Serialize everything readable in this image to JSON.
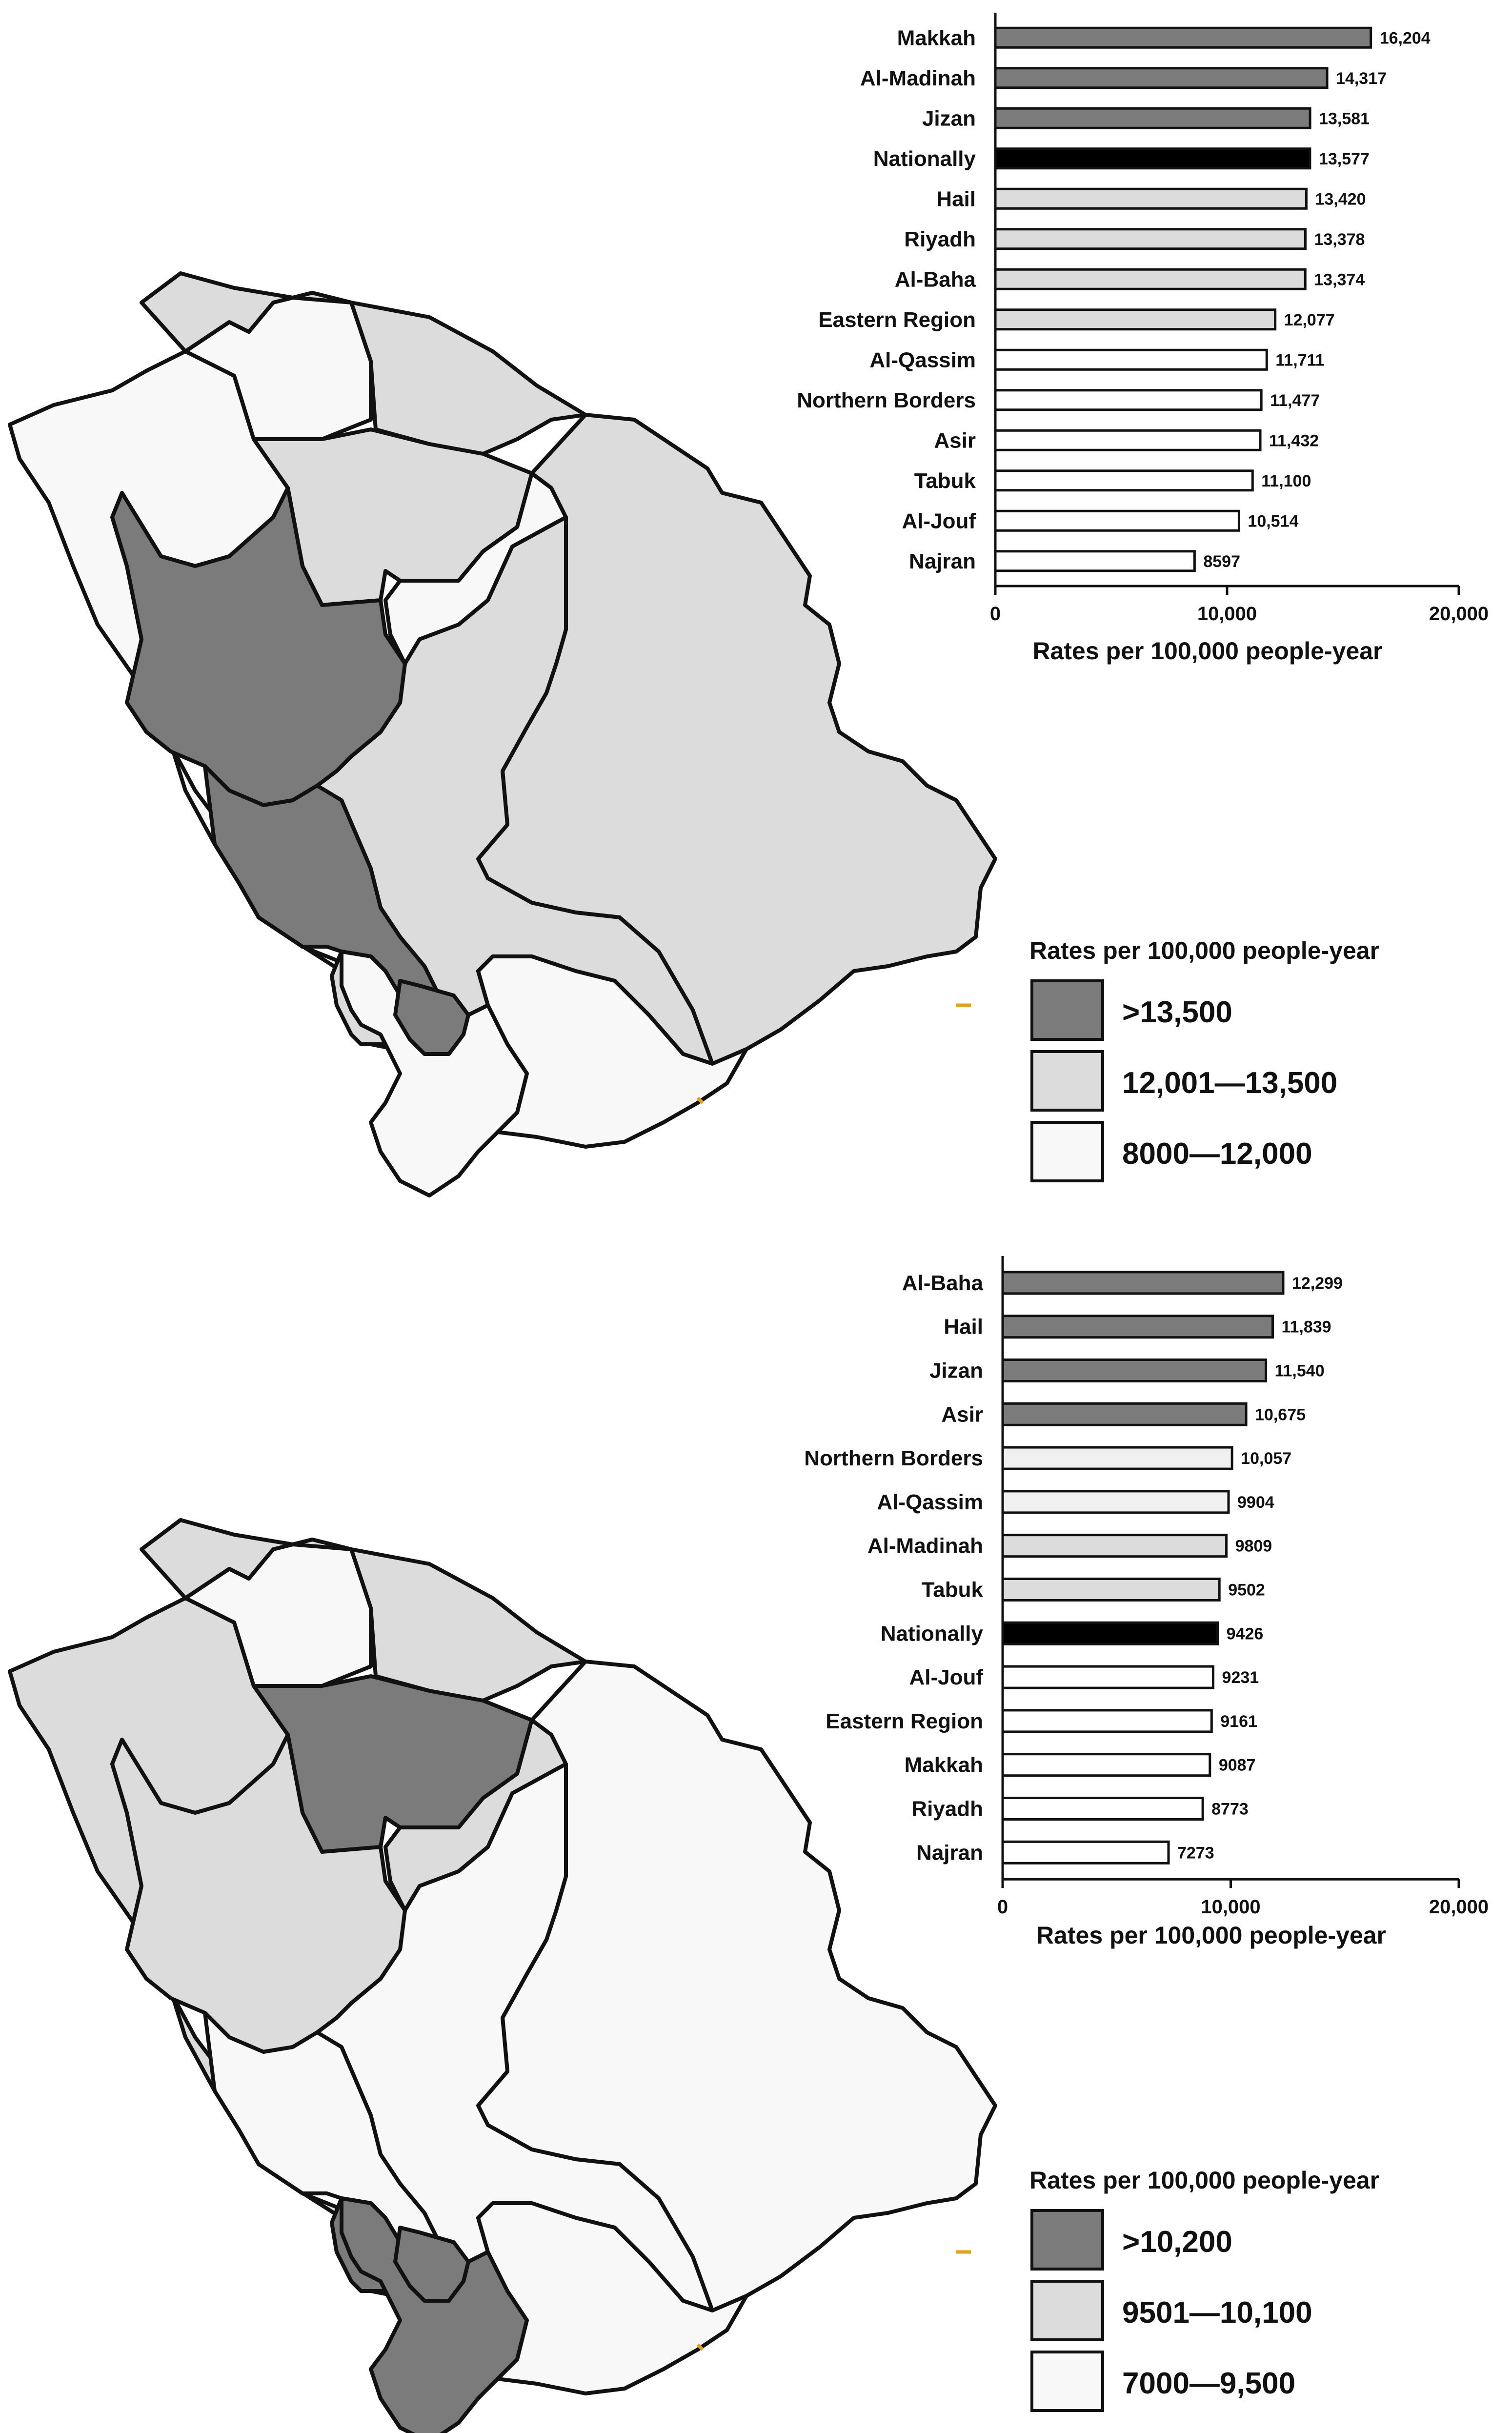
{
  "colors": {
    "dark": "#7b7b7b",
    "light": "#dcdcdc",
    "white": "#f8f8f8",
    "national": "#000000",
    "outline": "#111111",
    "coast_accent": "#e0a020"
  },
  "panels": [
    {
      "legend": {
        "title": "Rates per 100,000 people-year",
        "items": [
          {
            "label": ">13,500",
            "color": "#7b7b7b"
          },
          {
            "label": "12,001—13,500",
            "color": "#dcdcdc"
          },
          {
            "label": "8000—12,000",
            "color": "#f8f8f8"
          }
        ]
      },
      "map_fill": {
        "northwest": "#f8f8f8",
        "north": "#f8f8f8",
        "northern_borders": "#dcdcdc",
        "hail": "#dcdcdc",
        "qassim": "#f8f8f8",
        "eastern": "#dcdcdc",
        "riyadh": "#dcdcdc",
        "madinah": "#7b7b7b",
        "makkah": "#7b7b7b",
        "baha": "#dcdcdc",
        "asir": "#f8f8f8",
        "najran": "#f8f8f8",
        "jizan": "#7b7b7b"
      }
    },
    {
      "legend": {
        "title": "Rates per 100,000 people-year",
        "items": [
          {
            "label": ">10,200",
            "color": "#7b7b7b"
          },
          {
            "label": "9501—10,100",
            "color": "#dcdcdc"
          },
          {
            "label": "7000—9,500",
            "color": "#f8f8f8"
          }
        ]
      },
      "map_fill": {
        "northwest": "#dcdcdc",
        "north": "#f8f8f8",
        "northern_borders": "#dcdcdc",
        "hail": "#7b7b7b",
        "qassim": "#dcdcdc",
        "eastern": "#f8f8f8",
        "riyadh": "#f8f8f8",
        "madinah": "#dcdcdc",
        "makkah": "#f8f8f8",
        "baha": "#7b7b7b",
        "asir": "#7b7b7b",
        "najran": "#f8f8f8",
        "jizan": "#7b7b7b"
      }
    }
  ],
  "chart_data": [
    {
      "type": "bar",
      "orientation": "horizontal",
      "categories": [
        "Makkah",
        "Al-Madinah",
        "Jizan",
        "Nationally",
        "Hail",
        "Riyadh",
        "Al-Baha",
        "Eastern Region",
        "Al-Qassim",
        "Northern Borders",
        "Asir",
        "Tabuk",
        "Al-Jouf",
        "Najran"
      ],
      "values": [
        16204,
        14317,
        13581,
        13577,
        13420,
        13378,
        13374,
        12077,
        11711,
        11477,
        11432,
        11100,
        10514,
        8597
      ],
      "value_labels": [
        "16,204",
        "14,317",
        "13,581",
        "13,577",
        "13,420",
        "13,378",
        "13,374",
        "12,077",
        "11,711",
        "11,477",
        "11,432",
        "11,100",
        "10,514",
        "8597"
      ],
      "bar_colors": [
        "#7b7b7b",
        "#7b7b7b",
        "#7b7b7b",
        "#000000",
        "#dcdcdc",
        "#dcdcdc",
        "#dcdcdc",
        "#dcdcdc",
        "#ffffff",
        "#ffffff",
        "#ffffff",
        "#ffffff",
        "#ffffff",
        "#ffffff"
      ],
      "xlabel": "Rates per 100,000 people-year",
      "xlim": [
        0,
        20000
      ],
      "xticks": [
        0,
        10000,
        20000
      ],
      "xtick_labels": [
        "0",
        "10,000",
        "20,000"
      ],
      "grid": false,
      "legend": "none"
    },
    {
      "type": "bar",
      "orientation": "horizontal",
      "categories": [
        "Al-Baha",
        "Hail",
        "Jizan",
        "Asir",
        "Northern Borders",
        "Al-Qassim",
        "Al-Madinah",
        "Tabuk",
        "Nationally",
        "Al-Jouf",
        "Eastern Region",
        "Makkah",
        "Riyadh",
        "Najran"
      ],
      "values": [
        12299,
        11839,
        11540,
        10675,
        10057,
        9904,
        9809,
        9502,
        9426,
        9231,
        9161,
        9087,
        8773,
        7273
      ],
      "value_labels": [
        "12,299",
        "11,839",
        "11,540",
        "10,675",
        "10,057",
        "9904",
        "9809",
        "9502",
        "9426",
        "9231",
        "9161",
        "9087",
        "8773",
        "7273"
      ],
      "bar_colors": [
        "#7b7b7b",
        "#7b7b7b",
        "#7b7b7b",
        "#7b7b7b",
        "#f0f0f0",
        "#f0f0f0",
        "#dcdcdc",
        "#dcdcdc",
        "#000000",
        "#ffffff",
        "#ffffff",
        "#ffffff",
        "#ffffff",
        "#ffffff"
      ],
      "xlabel": "Rates per 100,000 people-year",
      "xlim": [
        0,
        20000
      ],
      "xticks": [
        0,
        10000,
        20000
      ],
      "xtick_labels": [
        "0",
        "10,000",
        "20,000"
      ],
      "grid": false,
      "legend": "none"
    }
  ]
}
